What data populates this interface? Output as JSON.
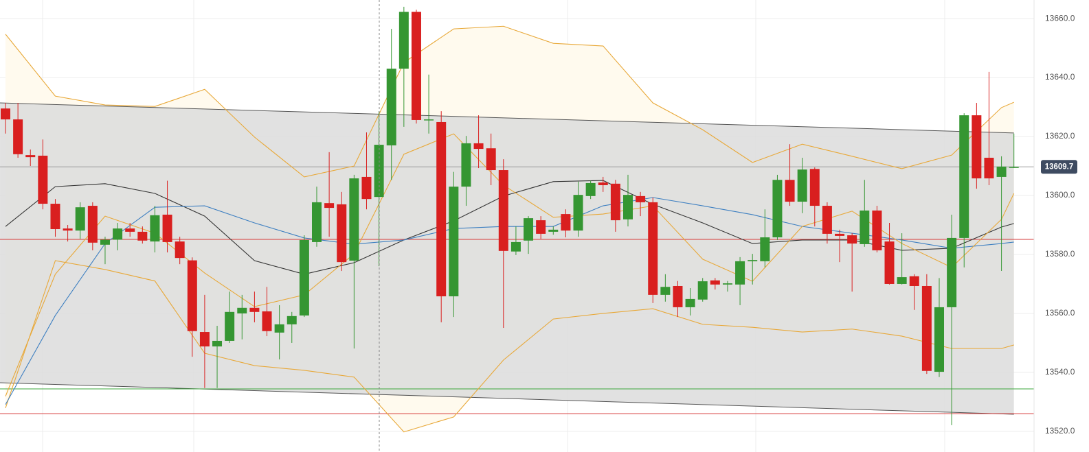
{
  "chart_data": {
    "type": "candlestick",
    "open": [
      13629.5,
      13625.8,
      13613.7,
      13613.5,
      13597.2,
      13588.8,
      13588.1,
      13596.5,
      13583.3,
      13585,
      13588.8,
      13587.7,
      13584.4,
      13593.5,
      13584.4,
      13578,
      13553.7,
      13548.8,
      13550.7,
      13560,
      13561.9,
      13560.7,
      13553.5,
      13556.3,
      13559.3,
      13584.2,
      13597.4,
      13597,
      13577.9,
      13606.3,
      13599.5,
      13617,
      13643,
      13662.3,
      13625.6,
      13624.9,
      13565.8,
      13603,
      13617.7,
      13616,
      13608.6,
      13581,
      13584.7,
      13591.6,
      13587.7,
      13593.7,
      13588.1,
      13599.8,
      13604.4,
      13604,
      13591.9,
      13599.8,
      13597.7,
      13566.3,
      13569.3,
      13562.1,
      13564.7,
      13571.2,
      13569.8,
      13569.8,
      13577.7,
      13577.7,
      13585.8,
      13605.3,
      13597.9,
      13609,
      13596.5,
      13587,
      13586.5,
      13583.5,
      13594.9,
      13584.4,
      13570,
      13572.6,
      13569.3,
      13540.2,
      13562.1,
      13585.6,
      13627.2,
      13612.8,
      13606.3,
      13609.7
    ],
    "high": [
      13631.4,
      13631.4,
      13615.6,
      13619,
      13598.8,
      13590,
      13597.7,
      13597.7,
      13586,
      13590.7,
      13590.7,
      13589.5,
      13596.5,
      13605,
      13586,
      13579,
      13566.3,
      13555.8,
      13567.4,
      13566.3,
      13567.4,
      13569,
      13562.8,
      13560.5,
      13586.5,
      13603,
      13614.7,
      13601.2,
      13607,
      13621.4,
      13628.6,
      13656.5,
      13664,
      13663,
      13641,
      13628.6,
      13608,
      13620.2,
      13627.2,
      13621,
      13612.3,
      13589.5,
      13593,
      13593,
      13589.5,
      13595.3,
      13604.7,
      13605,
      13606.3,
      13605.3,
      13607,
      13601.2,
      13599.3,
      13573.3,
      13571,
      13568.6,
      13572,
      13572,
      13571,
      13579.1,
      13580.2,
      13595.3,
      13607,
      13617.4,
      13612.8,
      13609.5,
      13597.7,
      13588.4,
      13587.2,
      13605.3,
      13596.5,
      13590.7,
      13587.2,
      13573.3,
      13573.3,
      13572,
      13593.5,
      13627.9,
      13631.4,
      13641.9,
      13613.3,
      13621
    ],
    "low": [
      13621,
      13612.8,
      13610,
      13595.3,
      13586,
      13584.4,
      13585.3,
      13581.4,
      13576.7,
      13581.4,
      13586,
      13583.7,
      13580.7,
      13580.7,
      13576.7,
      13545.3,
      13534.7,
      13534.7,
      13550,
      13551.2,
      13557,
      13552.3,
      13544.4,
      13550,
      13558.8,
      13582.6,
      13586,
      13574.4,
      13548.1,
      13595.3,
      13576,
      13605.3,
      13623.3,
      13624.4,
      13621,
      13557,
      13558.8,
      13596.5,
      13609.3,
      13603.5,
      13555.1,
      13579.8,
      13580.2,
      13585.3,
      13586.7,
      13585.8,
      13586,
      13598.8,
      13601.2,
      13587.7,
      13589.5,
      13593,
      13563.5,
      13564,
      13558.8,
      13559.3,
      13564,
      13568.1,
      13567.4,
      13562.8,
      13569.8,
      13575.6,
      13584.9,
      13596.5,
      13594,
      13589.5,
      13583.7,
      13577.4,
      13567.4,
      13582.6,
      13580.7,
      13569.8,
      13569.8,
      13561.2,
      13539.5,
      13538.4,
      13522.1,
      13575.6,
      13602.3,
      13603.5,
      13574.4,
      13609.3
    ],
    "close": [
      13625.8,
      13614,
      13613,
      13597.2,
      13588.6,
      13588.1,
      13596,
      13584,
      13585,
      13588.8,
      13587.7,
      13584.7,
      13593.3,
      13584.2,
      13578.8,
      13554,
      13548.8,
      13550.7,
      13560.5,
      13561.9,
      13560.5,
      13554,
      13556.3,
      13559.1,
      13584.9,
      13597.7,
      13595.8,
      13577.4,
      13605.8,
      13598.8,
      13617.2,
      13643,
      13662.3,
      13625.6,
      13625.8,
      13565.8,
      13603,
      13617.7,
      13615.8,
      13608.6,
      13581.2,
      13584.2,
      13592.3,
      13587,
      13588.4,
      13588.1,
      13600.2,
      13604.2,
      13603.5,
      13591.6,
      13600.2,
      13597.7,
      13566.3,
      13569,
      13562.1,
      13564.9,
      13570.9,
      13569.8,
      13570.2,
      13577.7,
      13578.1,
      13585.8,
      13605.3,
      13597.9,
      13608.8,
      13596.5,
      13587,
      13586.3,
      13583.7,
      13594.9,
      13581.4,
      13570,
      13572.3,
      13569.3,
      13540.5,
      13562.1,
      13585.6,
      13627.2,
      13605.8,
      13605.8,
      13609.8,
      13609.7
    ],
    "up_color": "#359632",
    "down_color": "#d91f1f",
    "overlay_x": [
      0,
      4,
      8,
      12,
      16,
      20,
      24,
      28,
      32,
      36,
      40,
      44,
      48,
      52,
      56,
      60,
      64,
      68,
      72,
      76,
      80,
      81
    ],
    "upper_band": {
      "color": "#e8a838",
      "values": [
        13654.7,
        13633.7,
        13630.7,
        13630.2,
        13636.0,
        13619.8,
        13606.3,
        13610.0,
        13645.1,
        13656.5,
        13657.4,
        13651.6,
        13650.7,
        13631.4,
        13622.3,
        13611.2,
        13617.4,
        13613.3,
        13609.1,
        13613.7,
        13629.8,
        13631.6
      ]
    },
    "lower_band": {
      "color": "#e8a838",
      "values": [
        13527.9,
        13577.9,
        13574.9,
        13571.0,
        13546.5,
        13542.3,
        13540.7,
        13538.4,
        13519.8,
        13524.9,
        13544.2,
        13558.1,
        13560.0,
        13561.6,
        13556.3,
        13555.3,
        13553.7,
        13554.7,
        13552.3,
        13548.1,
        13548.1,
        13549.3
      ]
    },
    "band_fill": "#fffaee",
    "middle_band": {
      "color": "#333333",
      "values": [
        13589.5,
        13603.0,
        13604.0,
        13600.7,
        13593.0,
        13577.9,
        13573.3,
        13577.2,
        13584.9,
        13591.4,
        13599.8,
        13604.7,
        13605.1,
        13597.0,
        13590.7,
        13583.7,
        13584.9,
        13584.9,
        13581.4,
        13582.1,
        13589.3,
        13590.5
      ]
    },
    "slow_ma": {
      "color": "#3d7fc1",
      "values": [
        13529.1,
        13559.3,
        13583.7,
        13596.0,
        13596.5,
        13590.7,
        13585.6,
        13583.5,
        13584.9,
        13588.8,
        13589.5,
        13589.5,
        13596.5,
        13599.3,
        13596.5,
        13593.5,
        13589.5,
        13587.2,
        13584.9,
        13582.1,
        13583.7,
        13584.2
      ]
    },
    "fast_ma": {
      "color": "#e8a838",
      "values": [
        13531.9,
        13573.3,
        13593.0,
        13587.2,
        13573.7,
        13562.3,
        13566.3,
        13580.2,
        13614.0,
        13620.9,
        13603.5,
        13592.6,
        13593.7,
        13596.5,
        13578.4,
        13570.9,
        13589.5,
        13594.7,
        13583.7,
        13575.6,
        13591.9,
        13600.7
      ]
    },
    "channel": {
      "x": [
        -0.44,
        81
      ],
      "upper": [
        13631.4,
        13621.2
      ],
      "lower": [
        13536.5,
        13525.8
      ],
      "fill": "#dcdcdc",
      "color": "#555555"
    },
    "levels": [
      {
        "value": 13585.1,
        "color": "#d63a3a"
      },
      {
        "value": 13534.4,
        "color": "#3aa63a"
      },
      {
        "value": 13526.0,
        "color": "#d63a3a"
      }
    ],
    "last_price": 13609.7,
    "ylim": [
      13513.0,
      13666.3
    ],
    "yticks": [
      {
        "value": 13520,
        "label": "13520.0"
      },
      {
        "value": 13540,
        "label": "13540.0"
      },
      {
        "value": 13560,
        "label": "13560.0"
      },
      {
        "value": 13580,
        "label": "13580.0"
      },
      {
        "value": 13600,
        "label": "13600.0"
      },
      {
        "value": 13620,
        "label": "13620.0"
      },
      {
        "value": 13640,
        "label": "13640.0"
      },
      {
        "value": 13660,
        "label": "13660.0"
      }
    ],
    "grid": true
  }
}
